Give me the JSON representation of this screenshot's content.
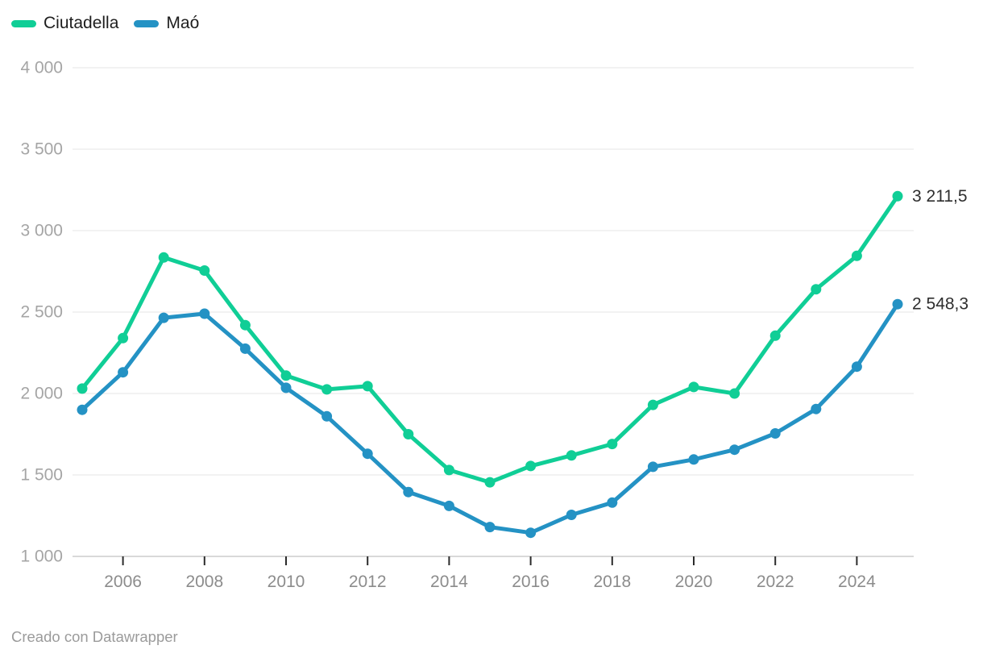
{
  "legend": {
    "items": [
      {
        "label": "Ciutadella",
        "color": "#10ce96"
      },
      {
        "label": "Maó",
        "color": "#2492c4"
      }
    ]
  },
  "footer": {
    "credit": "Creado con Datawrapper"
  },
  "chart_data": {
    "type": "line",
    "x": [
      2005,
      2006,
      2007,
      2008,
      2009,
      2010,
      2011,
      2012,
      2013,
      2014,
      2015,
      2016,
      2017,
      2018,
      2019,
      2020,
      2021,
      2022,
      2023,
      2024,
      2025
    ],
    "series": [
      {
        "name": "Ciutadella",
        "color": "#10ce96",
        "values": [
          2030,
          2340,
          2835,
          2755,
          2420,
          2110,
          2025,
          2045,
          1750,
          1530,
          1455,
          1555,
          1620,
          1690,
          1930,
          2040,
          2000,
          2355,
          2640,
          2845,
          3211.5
        ],
        "end_label": "3 211,5"
      },
      {
        "name": "Maó",
        "color": "#2492c4",
        "values": [
          1900,
          2130,
          2465,
          2490,
          2275,
          2035,
          1860,
          1630,
          1395,
          1310,
          1180,
          1145,
          1255,
          1330,
          1550,
          1595,
          1655,
          1755,
          1905,
          2165,
          2548.3
        ],
        "end_label": "2 548,3"
      }
    ],
    "xlim": [
      2005,
      2025
    ],
    "ylim": [
      1000,
      4000
    ],
    "yticks": [
      {
        "v": 4000,
        "label": "4 000"
      },
      {
        "v": 3500,
        "label": "3 500"
      },
      {
        "v": 3000,
        "label": "3 000"
      },
      {
        "v": 2500,
        "label": "2 500"
      },
      {
        "v": 2000,
        "label": "2 000"
      },
      {
        "v": 1500,
        "label": "1 500"
      },
      {
        "v": 1000,
        "label": "1 000"
      }
    ],
    "xticks": [
      {
        "v": 2006,
        "label": "2006"
      },
      {
        "v": 2008,
        "label": "2008"
      },
      {
        "v": 2010,
        "label": "2010"
      },
      {
        "v": 2012,
        "label": "2012"
      },
      {
        "v": 2014,
        "label": "2014"
      },
      {
        "v": 2016,
        "label": "2016"
      },
      {
        "v": 2018,
        "label": "2018"
      },
      {
        "v": 2020,
        "label": "2020"
      },
      {
        "v": 2022,
        "label": "2022"
      },
      {
        "v": 2024,
        "label": "2024"
      }
    ],
    "grid": true,
    "legend_position": "top-left"
  }
}
